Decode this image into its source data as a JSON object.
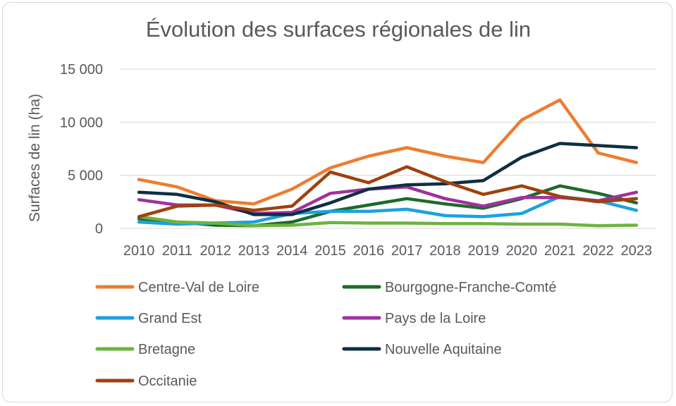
{
  "chart_data": {
    "type": "line",
    "title": "Évolution des surfaces régionales de lin",
    "xlabel": "",
    "ylabel": "Surfaces de lin (ha)",
    "ylim": [
      0,
      15000
    ],
    "yticks": [
      0,
      5000,
      10000,
      15000
    ],
    "ytick_labels": [
      "0",
      "5 000",
      "10 000",
      "15 000"
    ],
    "grid": true,
    "legend_position": "bottom",
    "x": [
      "2010",
      "2011",
      "2012",
      "2013",
      "2014",
      "2015",
      "2016",
      "2017",
      "2018",
      "2019",
      "2020",
      "2021",
      "2022",
      "2023"
    ],
    "series": [
      {
        "name": "Centre-Val de Loire",
        "color": "#ED7D31",
        "values": [
          4600,
          3900,
          2600,
          2300,
          3700,
          5700,
          6800,
          7600,
          6800,
          6200,
          10200,
          12100,
          7100,
          6200
        ]
      },
      {
        "name": "Bourgogne-Franche-Comté",
        "color": "#1E6B2A",
        "values": [
          900,
          600,
          300,
          250,
          600,
          1600,
          2200,
          2800,
          2300,
          1900,
          2800,
          4000,
          3300,
          2400
        ]
      },
      {
        "name": "Grand Est",
        "color": "#1BA1E2",
        "values": [
          600,
          400,
          500,
          600,
          1400,
          1600,
          1600,
          1800,
          1200,
          1100,
          1400,
          3000,
          2600,
          1700
        ]
      },
      {
        "name": "Pays de la Loire",
        "color": "#A0319E",
        "values": [
          2700,
          2200,
          2200,
          1400,
          1500,
          3300,
          3700,
          3900,
          2800,
          2100,
          2900,
          2900,
          2600,
          3400
        ]
      },
      {
        "name": "Bretagne",
        "color": "#6DB33F",
        "values": [
          1100,
          600,
          500,
          250,
          300,
          550,
          500,
          500,
          450,
          450,
          400,
          400,
          250,
          300
        ]
      },
      {
        "name": "Nouvelle Aquitaine",
        "color": "#0E2F44",
        "values": [
          3400,
          3200,
          2500,
          1300,
          1300,
          2400,
          3700,
          4100,
          4200,
          4500,
          6700,
          8000,
          7800,
          7600
        ]
      },
      {
        "name": "Occitanie",
        "color": "#A0410D",
        "values": [
          1100,
          2100,
          2200,
          1700,
          2100,
          5300,
          4300,
          5800,
          4400,
          3200,
          4000,
          3000,
          2500,
          2800
        ]
      }
    ]
  }
}
